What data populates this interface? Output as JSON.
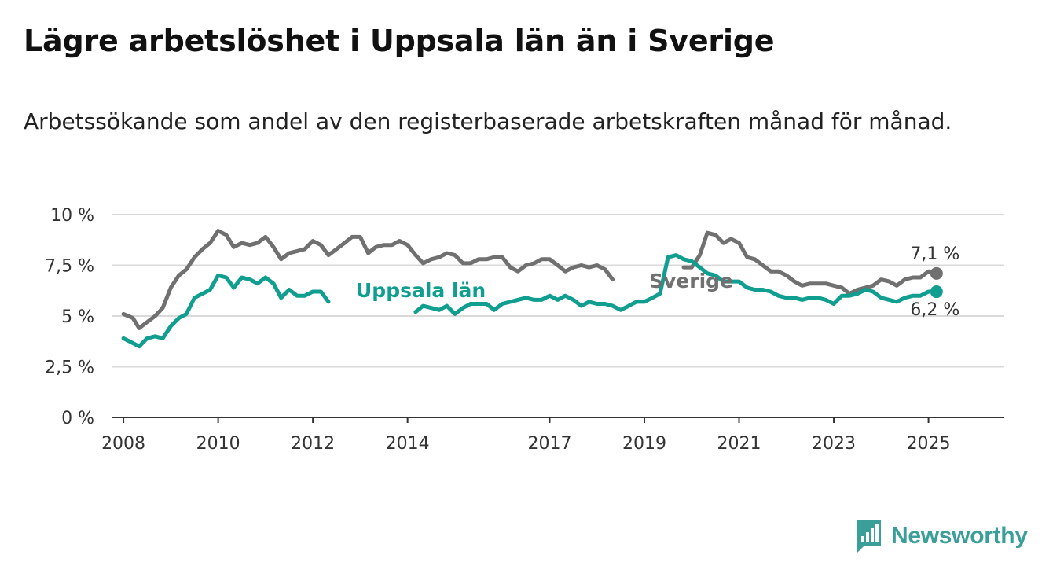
{
  "title": "Lägre arbetslöshet i Uppsala län än i Sverige",
  "subtitle": "Arbetssökande som andel av den registerbaserade arbetskraften månad för månad.",
  "brand": {
    "name": "Newsworthy",
    "color": "#3a9e99"
  },
  "colors": {
    "sverige": "#707070",
    "uppsala": "#109e90",
    "grid": "#d9d9d9",
    "axis": "#333333"
  },
  "chart_data": {
    "type": "line",
    "title": "Lägre arbetslöshet i Uppsala län än i Sverige",
    "subtitle": "Arbetssökande som andel av den registerbaserade arbetskraften månad för månad.",
    "xlabel": "",
    "ylabel": "",
    "xlim": [
      2007.75,
      2026.6
    ],
    "ylim": [
      0,
      10
    ],
    "grid": true,
    "legend": "inline labels",
    "x_ticks": [
      "2008",
      "2010",
      "2012",
      "2014",
      "2017",
      "2019",
      "2021",
      "2023",
      "2025"
    ],
    "y_ticks": [
      "0 %",
      "2,5 %",
      "5 %",
      "7,5 %",
      "10 %"
    ],
    "annotations": [
      {
        "text": "7,1 %",
        "series": "Sverige"
      },
      {
        "text": "6,2 %",
        "series": "Uppsala län"
      }
    ],
    "series": [
      {
        "name": "Sverige",
        "label": "Sverige",
        "color": "#707070",
        "last_value_label": "7,1 %",
        "segments": [
          {
            "x": [
              2008.0,
              2008.2,
              2008.33,
              2008.5,
              2008.67,
              2008.83,
              2009.0,
              2009.17,
              2009.33,
              2009.5,
              2009.67,
              2009.83,
              2010.0,
              2010.17,
              2010.33,
              2010.5,
              2010.67,
              2010.83,
              2011.0,
              2011.17,
              2011.33,
              2011.5,
              2011.67,
              2011.83,
              2012.0,
              2012.17,
              2012.33,
              2012.5,
              2012.67,
              2012.83,
              2013.0,
              2013.17,
              2013.33,
              2013.5,
              2013.67,
              2013.83,
              2014.0,
              2014.17,
              2014.33,
              2014.5,
              2014.67,
              2014.83,
              2015.0,
              2015.17,
              2015.33,
              2015.5,
              2015.67,
              2015.83,
              2016.0,
              2016.17,
              2016.33,
              2016.5,
              2016.67,
              2016.83,
              2017.0,
              2017.17,
              2017.33,
              2017.5,
              2017.67,
              2017.83,
              2018.0,
              2018.17,
              2018.33
            ],
            "y": [
              5.1,
              4.9,
              4.4,
              4.7,
              5.0,
              5.4,
              6.4,
              7.0,
              7.3,
              7.9,
              8.3,
              8.6,
              9.2,
              9.0,
              8.4,
              8.6,
              8.5,
              8.6,
              8.9,
              8.4,
              7.8,
              8.1,
              8.2,
              8.3,
              8.7,
              8.5,
              8.0,
              8.3,
              8.6,
              8.9,
              8.9,
              8.1,
              8.4,
              8.5,
              8.5,
              8.7,
              8.5,
              8.0,
              7.6,
              7.8,
              7.9,
              8.1,
              8.0,
              7.6,
              7.6,
              7.8,
              7.8,
              7.9,
              7.9,
              7.4,
              7.2,
              7.5,
              7.6,
              7.8,
              7.8,
              7.5,
              7.2,
              7.4,
              7.5,
              7.4,
              7.5,
              7.3,
              6.8
            ]
          },
          {
            "x": [
              2019.83,
              2020.0,
              2020.17,
              2020.33,
              2020.5,
              2020.67,
              2020.83,
              2021.0,
              2021.17,
              2021.33,
              2021.5,
              2021.67,
              2021.83,
              2022.0,
              2022.17,
              2022.33,
              2022.5,
              2022.67,
              2022.83,
              2023.0,
              2023.17,
              2023.33,
              2023.5,
              2023.67,
              2023.83,
              2024.0,
              2024.17,
              2024.33,
              2024.5,
              2024.67,
              2024.83,
              2025.0,
              2025.17
            ],
            "y": [
              7.4,
              7.4,
              8.0,
              9.1,
              9.0,
              8.6,
              8.8,
              8.6,
              7.9,
              7.8,
              7.5,
              7.2,
              7.2,
              7.0,
              6.7,
              6.5,
              6.6,
              6.6,
              6.6,
              6.5,
              6.4,
              6.1,
              6.3,
              6.4,
              6.5,
              6.8,
              6.7,
              6.5,
              6.8,
              6.9,
              6.9,
              7.2,
              7.1
            ]
          }
        ]
      },
      {
        "name": "Uppsala län",
        "label": "Uppsala län",
        "color": "#109e90",
        "last_value_label": "6,2 %",
        "segments": [
          {
            "x": [
              2008.0,
              2008.17,
              2008.33,
              2008.5,
              2008.67,
              2008.83,
              2009.0,
              2009.17,
              2009.33,
              2009.5,
              2009.67,
              2009.83,
              2010.0,
              2010.17,
              2010.33,
              2010.5,
              2010.67,
              2010.83,
              2011.0,
              2011.17,
              2011.33,
              2011.5,
              2011.67,
              2011.83,
              2012.0,
              2012.17,
              2012.33
            ],
            "y": [
              3.9,
              3.7,
              3.5,
              3.9,
              4.0,
              3.9,
              4.5,
              4.9,
              5.1,
              5.9,
              6.1,
              6.3,
              7.0,
              6.9,
              6.4,
              6.9,
              6.8,
              6.6,
              6.9,
              6.6,
              5.9,
              6.3,
              6.0,
              6.0,
              6.2,
              6.2,
              5.7
            ]
          },
          {
            "x": [
              2014.17,
              2014.33,
              2014.5,
              2014.67,
              2014.83,
              2015.0,
              2015.17,
              2015.33,
              2015.5,
              2015.67,
              2015.83,
              2016.0,
              2016.17,
              2016.33,
              2016.5,
              2016.67,
              2016.83,
              2017.0,
              2017.17,
              2017.33,
              2017.5,
              2017.67,
              2017.83,
              2018.0,
              2018.17,
              2018.33,
              2018.5,
              2018.67,
              2018.83,
              2019.0,
              2019.17,
              2019.33,
              2019.5,
              2019.67,
              2019.83,
              2020.0,
              2020.17,
              2020.33,
              2020.5,
              2020.67,
              2020.83,
              2021.0,
              2021.17,
              2021.33,
              2021.5,
              2021.67,
              2021.83,
              2022.0,
              2022.17,
              2022.33,
              2022.5,
              2022.67,
              2022.83,
              2023.0,
              2023.17,
              2023.33,
              2023.5,
              2023.67,
              2023.83,
              2024.0,
              2024.17,
              2024.33,
              2024.5,
              2024.67,
              2024.83,
              2025.0,
              2025.17
            ],
            "y": [
              5.2,
              5.5,
              5.4,
              5.3,
              5.5,
              5.1,
              5.4,
              5.6,
              5.6,
              5.6,
              5.3,
              5.6,
              5.7,
              5.8,
              5.9,
              5.8,
              5.8,
              6.0,
              5.8,
              6.0,
              5.8,
              5.5,
              5.7,
              5.6,
              5.6,
              5.5,
              5.3,
              5.5,
              5.7,
              5.7,
              5.9,
              6.1,
              7.9,
              8.0,
              7.8,
              7.7,
              7.4,
              7.1,
              7.0,
              6.7,
              6.7,
              6.7,
              6.4,
              6.3,
              6.3,
              6.2,
              6.0,
              5.9,
              5.9,
              5.8,
              5.9,
              5.9,
              5.8,
              5.6,
              6.0,
              6.0,
              6.1,
              6.3,
              6.2,
              5.9,
              5.8,
              5.7,
              5.9,
              6.0,
              6.0,
              6.2,
              6.2
            ]
          }
        ]
      }
    ]
  }
}
